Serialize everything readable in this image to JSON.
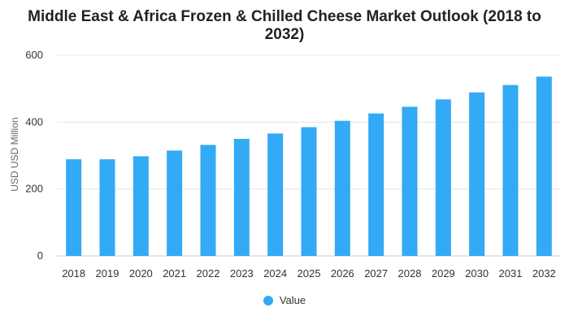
{
  "colors": {
    "bar": "#33aaf5",
    "grid": "#e6e6e6",
    "axis": "#cccccc"
  },
  "chart_data": {
    "type": "bar",
    "title": "Middle East & Africa Frozen & Chilled Cheese Market Outlook (2018 to 2032)",
    "xlabel": "",
    "ylabel": "USD USD Million",
    "ylim": [
      0,
      600
    ],
    "yticks": [
      0,
      200,
      400,
      600
    ],
    "grid": true,
    "legend_position": "bottom",
    "categories": [
      "2018",
      "2019",
      "2020",
      "2021",
      "2022",
      "2023",
      "2024",
      "2025",
      "2026",
      "2027",
      "2028",
      "2029",
      "2030",
      "2031",
      "2032"
    ],
    "series": [
      {
        "name": "Value",
        "values": [
          289,
          289,
          298,
          315,
          332,
          350,
          366,
          385,
          404,
          426,
          446,
          468,
          489,
          511,
          536
        ]
      }
    ]
  }
}
